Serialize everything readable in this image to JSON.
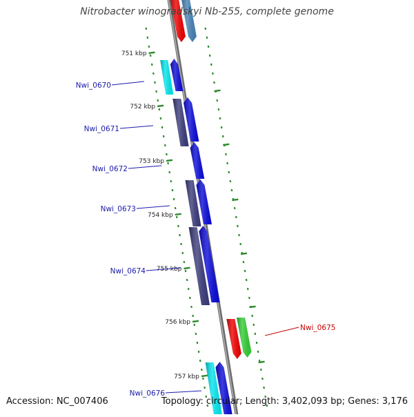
{
  "title": "Nitrobacter winogradskyi Nb-255, complete genome",
  "footer": {
    "accession": "Accession: NC_007406",
    "topology": "Topology: circular; Length: 3,402,093 bp; Genes: 3,176"
  },
  "colors": {
    "backbone": "#888888",
    "tick": "#2e8b2e",
    "label_blue": "#1a1aaa",
    "label_red": "#cc0000",
    "gene_blue": "#0a0ad8",
    "gene_navy": "#3a3a7a",
    "gene_cyan": "#00e5ee",
    "gene_red": "#ee0000",
    "gene_green": "#33cc33",
    "gene_steel": "#4682b4"
  },
  "ticks": [
    {
      "kbp": 751,
      "label": "751 kbp"
    },
    {
      "kbp": 752,
      "label": "752 kbp"
    },
    {
      "kbp": 753,
      "label": "753 kbp"
    },
    {
      "kbp": 754,
      "label": "754 kbp"
    },
    {
      "kbp": 755,
      "label": "755 kbp"
    },
    {
      "kbp": 756,
      "label": "756 kbp"
    },
    {
      "kbp": 757,
      "label": "757 kbp"
    }
  ],
  "genes": [
    {
      "name": "Nwi_0670",
      "color": "label_blue"
    },
    {
      "name": "Nwi_0671",
      "color": "label_blue"
    },
    {
      "name": "Nwi_0672",
      "color": "label_blue"
    },
    {
      "name": "Nwi_0673",
      "color": "label_blue"
    },
    {
      "name": "Nwi_0674",
      "color": "label_blue"
    },
    {
      "name": "Nwi_0675",
      "color": "label_red"
    },
    {
      "name": "Nwi_0676",
      "color": "label_blue"
    }
  ]
}
